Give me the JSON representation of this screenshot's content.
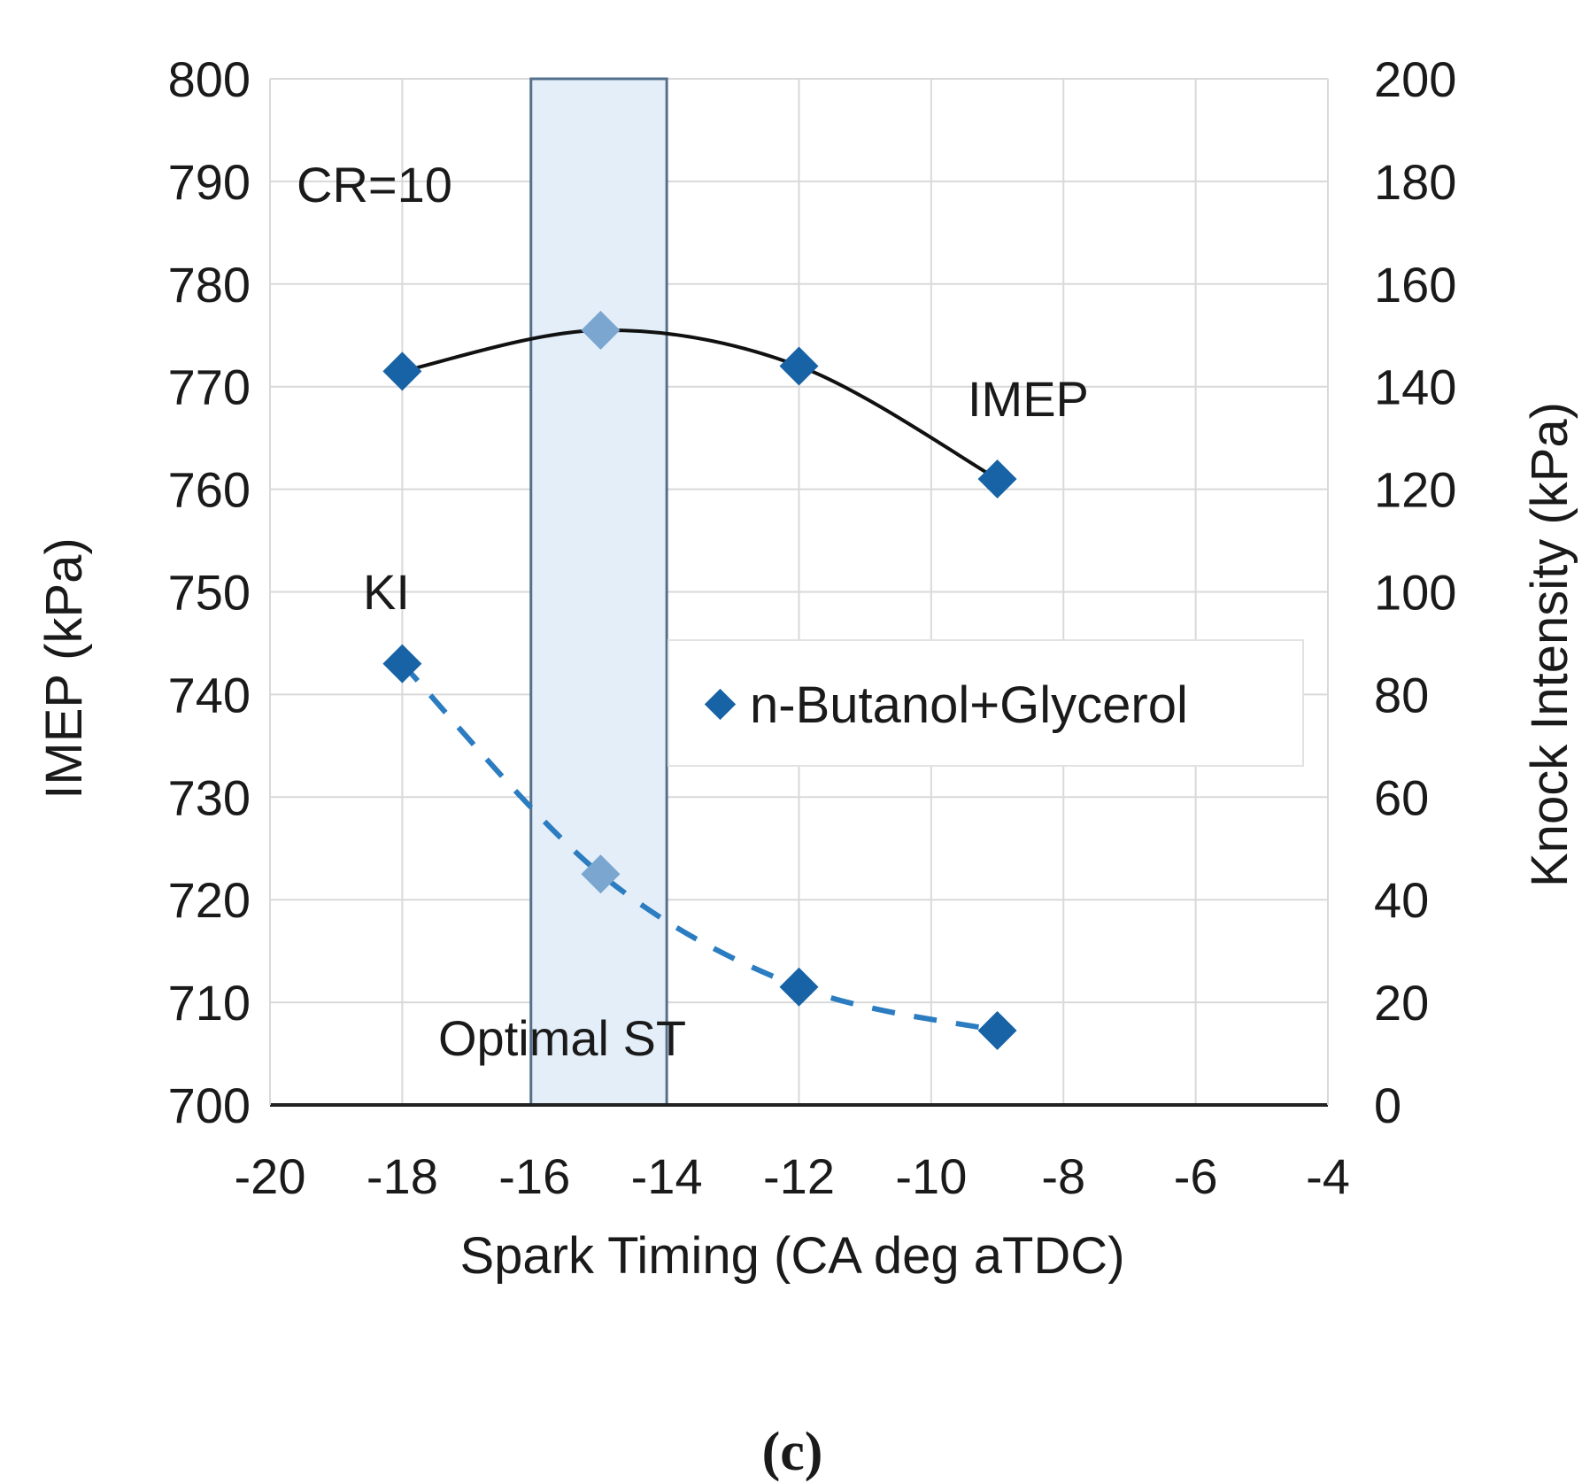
{
  "chart_data": {
    "type": "scatter",
    "title": "",
    "xlabel": "Spark Timing (CA deg aTDC)",
    "ylabel": "IMEP (kPa)",
    "y2label": "Knock Intensity (kPa)",
    "xlim": [
      -20,
      -4
    ],
    "ylim": [
      700,
      800
    ],
    "y2lim": [
      0,
      200
    ],
    "x_ticks": [
      -20,
      -18,
      -16,
      -14,
      -12,
      -10,
      -8,
      -6,
      -4
    ],
    "y_ticks": [
      700,
      710,
      720,
      730,
      740,
      750,
      760,
      770,
      780,
      790,
      800
    ],
    "y2_ticks": [
      0,
      20,
      40,
      60,
      80,
      100,
      120,
      140,
      160,
      180,
      200
    ],
    "grid": true,
    "series": [
      {
        "name": "IMEP",
        "axis": "left",
        "line": "solid trend",
        "x": [
          -18,
          -15,
          -12,
          -9
        ],
        "y": [
          771.5,
          775.5,
          772,
          761
        ]
      },
      {
        "name": "KI",
        "axis": "right",
        "line": "dashed trend",
        "x": [
          -18,
          -15,
          -12,
          -9
        ],
        "y": [
          86,
          45,
          23,
          14.5
        ]
      }
    ],
    "highlight_band": {
      "x_start": -16,
      "x_end": -14,
      "label": "Optimal ST"
    },
    "annotations": {
      "cr": "CR=10",
      "imep": "IMEP",
      "ki": "KI",
      "optimal": "Optimal ST"
    },
    "legend": {
      "label": "n-Butanol+Glycerol",
      "position": "center-right"
    },
    "caption": "(c)",
    "colors": {
      "marker": "#1763a6",
      "marker_light": "#7aa6cf",
      "imep_line": "#111111",
      "ki_line": "#2b7cc0",
      "band_fill": "#e3eef9",
      "band_edge": "#54708c",
      "axis": "#222222"
    }
  }
}
